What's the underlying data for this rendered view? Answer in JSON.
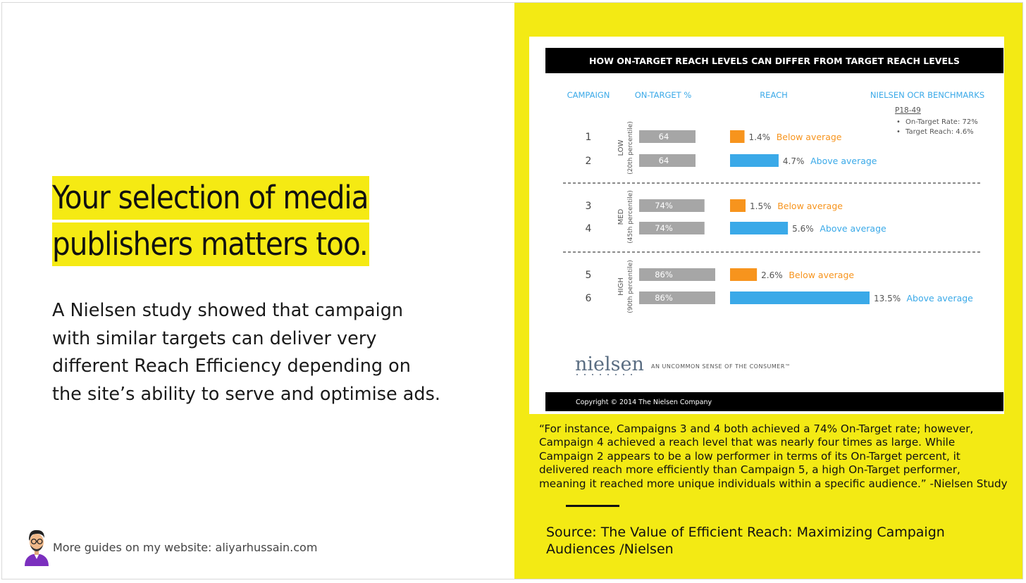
{
  "headline": {
    "line1": "Your selection of media",
    "line2": "publishers matters too."
  },
  "body": {
    "line1": "A Nielsen study showed that campaign",
    "line2": "with similar targets can deliver very",
    "line3": "different Reach Efficiency depending on",
    "line4": "the site’s ability to serve and optimise ads."
  },
  "footer": {
    "text": "More guides on my website: aliyarhussain.com"
  },
  "quote": {
    "text": "“For instance, Campaigns 3 and 4 both achieved a 74% On-Target rate; however, Campaign 4 achieved a reach level that was nearly four times as large. While Campaign 2 appears to be a low performer in terms of its On-Target percent, it delivered reach more efficiently than Campaign 5, a high On-Target performer, meaning it reached more unique individuals within a specific audience.” -Nielsen Study"
  },
  "source": {
    "text": "Source: The Value of Efficient Reach: Maximizing Campaign Audiences /Nielsen"
  },
  "colors": {
    "accent_yellow": "#f3ea14",
    "bar_gray": "#a6a6a6",
    "bar_orange": "#f7941d",
    "bar_blue": "#3aa9e8",
    "header_blue": "#3aa9e8",
    "header_black": "#000000"
  },
  "chart_data": {
    "type": "bar",
    "title": "HOW ON-TARGET REACH LEVELS CAN DIFFER FROM TARGET REACH LEVELS",
    "columns": [
      "CAMPAIGN",
      "ON-TARGET %",
      "REACH",
      "NIELSEN OCR BENCHMARKS"
    ],
    "benchmarks": {
      "heading": "P18-49",
      "items": [
        "On-Target Rate: 72%",
        "Target Reach: 4.6%"
      ]
    },
    "groups": [
      {
        "label": "LOW",
        "sublabel": "(20th percentile)"
      },
      {
        "label": "MED",
        "sublabel": "(45th percentile)"
      },
      {
        "label": "HIGH",
        "sublabel": "(90th percentile)"
      }
    ],
    "campaigns": [
      {
        "campaign": "1",
        "group": 0,
        "on_target": 64,
        "on_target_label": "64",
        "reach": 1.4,
        "reach_label": "1.4%",
        "status": "Below average"
      },
      {
        "campaign": "2",
        "group": 0,
        "on_target": 64,
        "on_target_label": "64",
        "reach": 4.7,
        "reach_label": "4.7%",
        "status": "Above average"
      },
      {
        "campaign": "3",
        "group": 1,
        "on_target": 74,
        "on_target_label": "74%",
        "reach": 1.5,
        "reach_label": "1.5%",
        "status": "Below average"
      },
      {
        "campaign": "4",
        "group": 1,
        "on_target": 74,
        "on_target_label": "74%",
        "reach": 5.6,
        "reach_label": "5.6%",
        "status": "Above average"
      },
      {
        "campaign": "5",
        "group": 2,
        "on_target": 86,
        "on_target_label": "86%",
        "reach": 2.6,
        "reach_label": "2.6%",
        "status": "Below average"
      },
      {
        "campaign": "6",
        "group": 2,
        "on_target": 86,
        "on_target_label": "86%",
        "reach": 13.5,
        "reach_label": "13.5%",
        "status": "Above average"
      }
    ],
    "logo_text": "nielsen",
    "tagline": "AN UNCOMMON SENSE OF THE CONSUMER™",
    "copyright": "Copyright © 2014 The Nielsen Company"
  }
}
